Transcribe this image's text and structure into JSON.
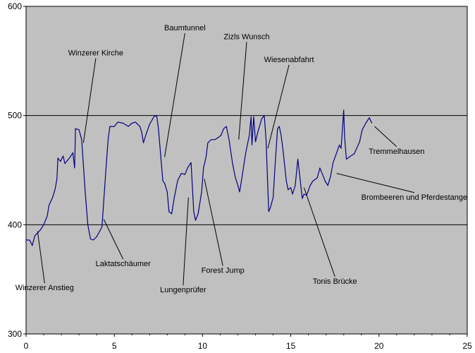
{
  "chart_data": {
    "type": "line",
    "title": "",
    "xlabel": "",
    "ylabel": "",
    "xlim": [
      0,
      25
    ],
    "ylim": [
      300,
      600
    ],
    "x_ticks": [
      "0",
      "5",
      "10",
      "15",
      "20",
      "25"
    ],
    "y_ticks": [
      "300",
      "400",
      "500",
      "600"
    ],
    "grid": "horizontal lines at 400 and 500",
    "colors": {
      "plot_background": "#c0c0c0",
      "series_line": "#000080",
      "gridline": "#000000",
      "page_background": "#ffffff"
    },
    "series": [
      {
        "values_xy": [
          [
            0.0,
            386
          ],
          [
            0.2,
            386
          ],
          [
            0.35,
            381
          ],
          [
            0.5,
            390
          ],
          [
            0.8,
            395
          ],
          [
            1.0,
            400
          ],
          [
            1.2,
            408
          ],
          [
            1.3,
            418
          ],
          [
            1.5,
            425
          ],
          [
            1.65,
            433
          ],
          [
            1.75,
            442
          ],
          [
            1.8,
            461
          ],
          [
            1.95,
            458
          ],
          [
            2.1,
            463
          ],
          [
            2.2,
            456
          ],
          [
            2.5,
            462
          ],
          [
            2.65,
            466
          ],
          [
            2.75,
            452
          ],
          [
            2.8,
            488
          ],
          [
            3.0,
            487
          ],
          [
            3.15,
            478
          ],
          [
            3.35,
            430
          ],
          [
            3.5,
            400
          ],
          [
            3.65,
            387
          ],
          [
            3.8,
            386
          ],
          [
            4.0,
            389
          ],
          [
            4.3,
            398
          ],
          [
            4.5,
            445
          ],
          [
            4.65,
            478
          ],
          [
            4.75,
            490
          ],
          [
            5.0,
            490
          ],
          [
            5.2,
            494
          ],
          [
            5.5,
            493
          ],
          [
            5.8,
            490
          ],
          [
            6.0,
            493
          ],
          [
            6.2,
            494
          ],
          [
            6.45,
            490
          ],
          [
            6.55,
            485
          ],
          [
            6.65,
            475
          ],
          [
            6.8,
            483
          ],
          [
            7.0,
            492
          ],
          [
            7.25,
            499
          ],
          [
            7.4,
            500
          ],
          [
            7.5,
            488
          ],
          [
            7.75,
            440
          ],
          [
            7.85,
            438
          ],
          [
            8.0,
            430
          ],
          [
            8.1,
            412
          ],
          [
            8.25,
            410
          ],
          [
            8.4,
            425
          ],
          [
            8.6,
            441
          ],
          [
            8.8,
            447
          ],
          [
            9.0,
            446
          ],
          [
            9.15,
            452
          ],
          [
            9.35,
            457
          ],
          [
            9.5,
            412
          ],
          [
            9.6,
            404
          ],
          [
            9.75,
            410
          ],
          [
            9.95,
            430
          ],
          [
            10.05,
            452
          ],
          [
            10.2,
            462
          ],
          [
            10.3,
            475
          ],
          [
            10.5,
            478
          ],
          [
            10.7,
            478
          ],
          [
            10.9,
            480
          ],
          [
            11.05,
            482
          ],
          [
            11.2,
            488
          ],
          [
            11.35,
            490
          ],
          [
            11.5,
            478
          ],
          [
            11.7,
            456
          ],
          [
            11.85,
            444
          ],
          [
            12.0,
            436
          ],
          [
            12.1,
            430
          ],
          [
            12.2,
            440
          ],
          [
            12.45,
            466
          ],
          [
            12.65,
            482
          ],
          [
            12.75,
            499
          ],
          [
            12.8,
            473
          ],
          [
            12.9,
            499
          ],
          [
            13.0,
            476
          ],
          [
            13.15,
            486
          ],
          [
            13.35,
            497
          ],
          [
            13.5,
            500
          ],
          [
            13.6,
            478
          ],
          [
            13.75,
            412
          ],
          [
            13.85,
            416
          ],
          [
            14.0,
            425
          ],
          [
            14.1,
            452
          ],
          [
            14.25,
            488
          ],
          [
            14.35,
            490
          ],
          [
            14.45,
            482
          ],
          [
            14.55,
            470
          ],
          [
            14.75,
            440
          ],
          [
            14.85,
            432
          ],
          [
            15.0,
            434
          ],
          [
            15.1,
            428
          ],
          [
            15.25,
            436
          ],
          [
            15.4,
            460
          ],
          [
            15.5,
            446
          ],
          [
            15.65,
            424
          ],
          [
            15.75,
            428
          ],
          [
            15.9,
            427
          ],
          [
            16.1,
            436
          ],
          [
            16.25,
            440
          ],
          [
            16.5,
            443
          ],
          [
            16.65,
            452
          ],
          [
            16.8,
            446
          ],
          [
            16.95,
            440
          ],
          [
            17.1,
            436
          ],
          [
            17.25,
            444
          ],
          [
            17.4,
            457
          ],
          [
            17.6,
            466
          ],
          [
            17.75,
            473
          ],
          [
            17.85,
            470
          ],
          [
            18.0,
            505
          ],
          [
            18.05,
            480
          ],
          [
            18.15,
            460
          ],
          [
            18.4,
            463
          ],
          [
            18.6,
            465
          ],
          [
            18.9,
            476
          ],
          [
            19.05,
            487
          ],
          [
            19.25,
            493
          ],
          [
            19.45,
            498
          ],
          [
            19.6,
            493
          ]
        ]
      }
    ],
    "annotations": [
      {
        "text": "Winzerer Anstieg",
        "point": [
          0.65,
          394
        ],
        "label_pos": [
          1.05,
          340
        ]
      },
      {
        "text": "Winzerer Kirche",
        "point": [
          3.25,
          475
        ],
        "label_pos": [
          3.95,
          555
        ]
      },
      {
        "text": "Laktatschäumer",
        "point": [
          4.4,
          405
        ],
        "label_pos": [
          5.5,
          362
        ]
      },
      {
        "text": "Baumtunnel",
        "point": [
          7.85,
          462
        ],
        "label_pos": [
          9.0,
          578
        ]
      },
      {
        "text": "Lungenprüfer",
        "point": [
          9.2,
          425
        ],
        "label_pos": [
          8.9,
          338
        ]
      },
      {
        "text": "Forest Jump",
        "point": [
          10.1,
          442
        ],
        "label_pos": [
          11.15,
          356
        ]
      },
      {
        "text": "Zizls Wunsch",
        "point": [
          12.05,
          478
        ],
        "label_pos": [
          12.5,
          570
        ]
      },
      {
        "text": "Wiesenabfahrt",
        "point": [
          13.7,
          470
        ],
        "label_pos": [
          14.9,
          549
        ]
      },
      {
        "text": "Tonis Brücke",
        "point": [
          15.75,
          434
        ],
        "label_pos": [
          17.5,
          346
        ]
      },
      {
        "text": "Tremmelhausen",
        "point": [
          19.75,
          490
        ],
        "label_pos": [
          21.0,
          465
        ]
      },
      {
        "text": "Brombeeren und Pferdestange",
        "point": [
          17.6,
          447
        ],
        "label_pos": [
          22.0,
          423
        ]
      }
    ]
  }
}
